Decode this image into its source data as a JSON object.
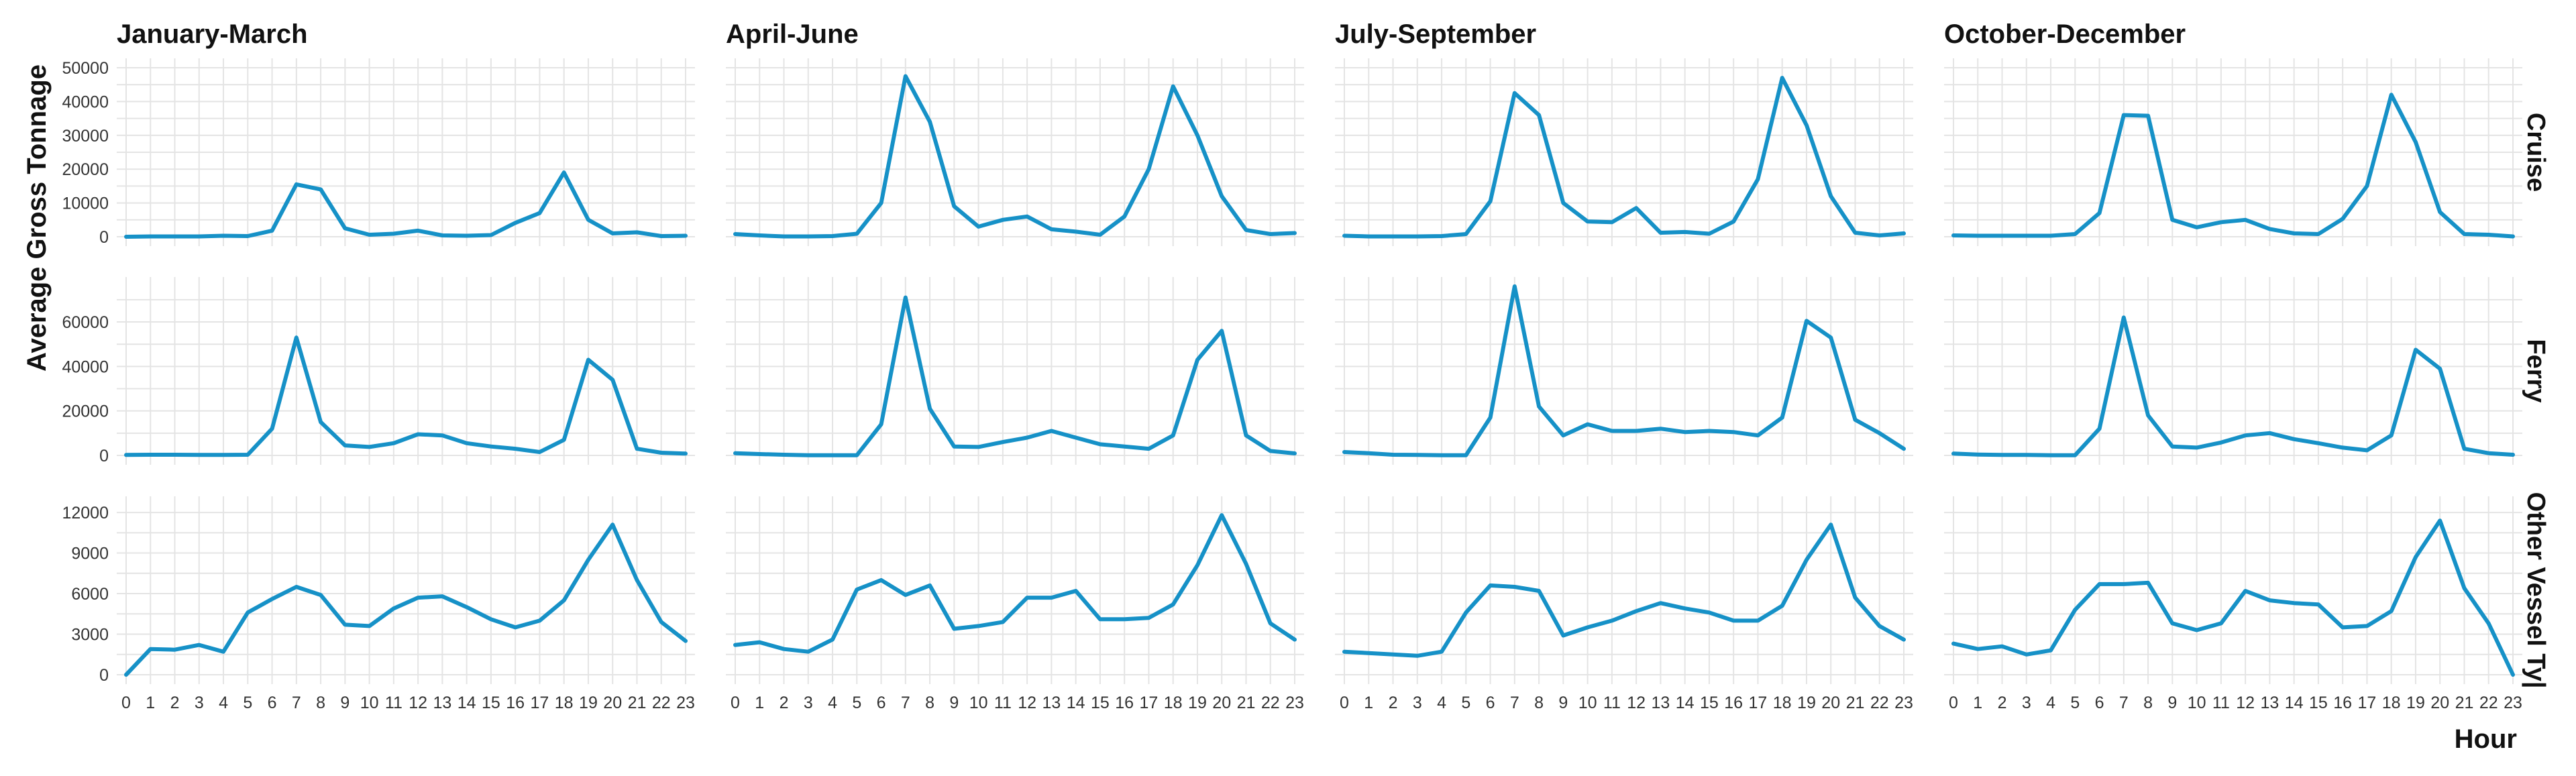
{
  "chart_data": {
    "type": "line",
    "layout": "facet-grid",
    "xlabel": "Hour",
    "ylabel": "Average Gross Tonnage",
    "x": [
      0,
      1,
      2,
      3,
      4,
      5,
      6,
      7,
      8,
      9,
      10,
      11,
      12,
      13,
      14,
      15,
      16,
      17,
      18,
      19,
      20,
      21,
      22,
      23
    ],
    "xlim": [
      0,
      23
    ],
    "columns": [
      "January-March",
      "April-June",
      "July-September",
      "October-December"
    ],
    "rows": [
      {
        "name": "Cruise",
        "ylim": [
          0,
          50000
        ],
        "yticks": [
          0,
          10000,
          20000,
          30000,
          40000,
          50000
        ],
        "series": [
          {
            "values": [
              0,
              100,
              100,
              100,
              300,
              200,
              1800,
              15500,
              14000,
              2500,
              600,
              900,
              1800,
              400,
              300,
              500,
              4100,
              7000,
              19000,
              5000,
              1000,
              1300,
              200,
              300
            ]
          },
          {
            "values": [
              800,
              400,
              100,
              100,
              200,
              900,
              10000,
              47500,
              34000,
              9000,
              3000,
              5000,
              6000,
              2200,
              1500,
              600,
              6000,
              20000,
              44500,
              30000,
              12000,
              2000,
              800,
              1100
            ]
          },
          {
            "values": [
              300,
              100,
              100,
              100,
              200,
              800,
              10500,
              42500,
              36000,
              10000,
              4500,
              4300,
              8500,
              1200,
              1400,
              900,
              4500,
              17000,
              47000,
              33000,
              12000,
              1200,
              400,
              1000
            ]
          },
          {
            "values": [
              400,
              300,
              300,
              300,
              300,
              800,
              7000,
              36000,
              35800,
              5000,
              2800,
              4300,
              5000,
              2300,
              1000,
              800,
              5300,
              15000,
              42000,
              28000,
              7300,
              800,
              600,
              100
            ]
          }
        ]
      },
      {
        "name": "Ferry",
        "ylim": [
          0,
          76000
        ],
        "yticks": [
          0,
          20000,
          40000,
          60000
        ],
        "series": [
          {
            "values": [
              200,
              300,
              300,
              200,
              200,
              300,
              12000,
              53000,
              15000,
              4500,
              3800,
              5500,
              9500,
              9000,
              5500,
              4000,
              3000,
              1500,
              7000,
              43000,
              34000,
              3000,
              1200,
              800
            ]
          },
          {
            "values": [
              1000,
              600,
              300,
              100,
              100,
              100,
              14000,
              71000,
              21000,
              4000,
              3800,
              6000,
              8000,
              11000,
              8000,
              5000,
              4000,
              3000,
              9000,
              43000,
              56000,
              9000,
              2000,
              900
            ]
          },
          {
            "values": [
              1500,
              1000,
              300,
              200,
              100,
              100,
              17000,
              76000,
              22000,
              9000,
              14000,
              11000,
              11000,
              12000,
              10500,
              11000,
              10500,
              9000,
              17000,
              60500,
              53000,
              16000,
              10000,
              3000
            ]
          },
          {
            "values": [
              800,
              400,
              200,
              200,
              100,
              100,
              12000,
              62000,
              18000,
              4000,
              3500,
              5800,
              9000,
              10000,
              7300,
              5500,
              3500,
              2300,
              9000,
              47500,
              39000,
              3000,
              1000,
              300
            ]
          }
        ]
      },
      {
        "name": "Other Vessel Ty|",
        "ylim": [
          0,
          12500
        ],
        "yticks": [
          0,
          3000,
          6000,
          9000,
          12000
        ],
        "series": [
          {
            "values": [
              0,
              1900,
              1850,
              2200,
              1700,
              4600,
              5600,
              6500,
              5900,
              3700,
              3600,
              4900,
              5700,
              5800,
              5000,
              4100,
              3500,
              4000,
              5500,
              8500,
              11100,
              7000,
              3900,
              2500
            ]
          },
          {
            "values": [
              2200,
              2400,
              1900,
              1700,
              2600,
              6300,
              7000,
              5900,
              6600,
              3400,
              3600,
              3900,
              5700,
              5700,
              6200,
              4100,
              4100,
              4200,
              5200,
              8100,
              11800,
              8200,
              3800,
              2600
            ]
          },
          {
            "values": [
              1700,
              1600,
              1500,
              1400,
              1700,
              4600,
              6600,
              6500,
              6200,
              2900,
              3500,
              4000,
              4700,
              5300,
              4900,
              4600,
              4000,
              4000,
              5100,
              8500,
              11100,
              5700,
              3600,
              2600
            ]
          },
          {
            "values": [
              2300,
              1900,
              2100,
              1500,
              1800,
              4800,
              6700,
              6700,
              6800,
              3800,
              3300,
              3800,
              6200,
              5500,
              5300,
              5200,
              3500,
              3600,
              4700,
              8700,
              11400,
              6400,
              3800,
              0
            ]
          }
        ]
      }
    ],
    "colors": {
      "line": "#1691c7",
      "grid": "#e4e4e4",
      "text": "#111111"
    },
    "grid": true,
    "legend": "none"
  }
}
